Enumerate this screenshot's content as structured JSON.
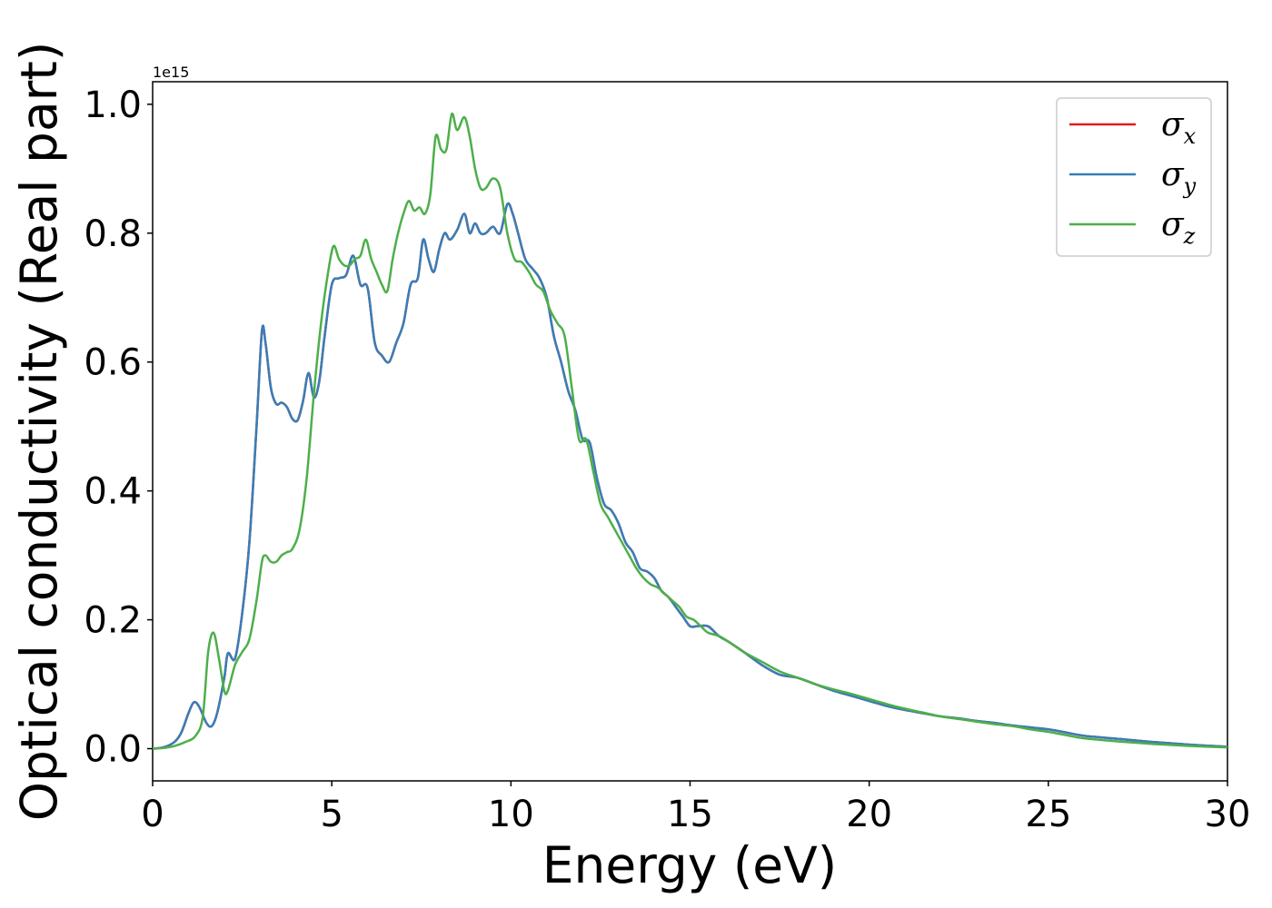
{
  "chart_data": {
    "type": "line",
    "xlabel": "Energy (eV)",
    "ylabel": "Optical conductivity (Real part)",
    "y_offset_label": "1e15",
    "xlim": [
      0,
      30
    ],
    "ylim": [
      -0.05,
      1.035
    ],
    "x_ticks": [
      0,
      5,
      10,
      15,
      20,
      25,
      30
    ],
    "x_tick_labels": [
      "0",
      "5",
      "10",
      "15",
      "20",
      "25",
      "30"
    ],
    "y_ticks": [
      0.0,
      0.2,
      0.4,
      0.6,
      0.8,
      1.0
    ],
    "y_tick_labels": [
      "0.0",
      "0.2",
      "0.4",
      "0.6",
      "0.8",
      "1.0"
    ],
    "grid": false,
    "legend_position": "top-right",
    "series": [
      {
        "name": "σx",
        "symbol": "σ",
        "subscript": "x",
        "color": "#e41a1c",
        "x": [
          0,
          0.3,
          0.6,
          0.8,
          1.0,
          1.15,
          1.3,
          1.5,
          1.65,
          1.8,
          2.0,
          2.1,
          2.3,
          2.5,
          2.7,
          2.9,
          3.05,
          3.15,
          3.3,
          3.45,
          3.6,
          3.75,
          3.9,
          4.05,
          4.2,
          4.35,
          4.5,
          4.65,
          4.8,
          5.0,
          5.2,
          5.4,
          5.6,
          5.8,
          6.0,
          6.2,
          6.4,
          6.6,
          6.8,
          7.0,
          7.2,
          7.4,
          7.55,
          7.7,
          7.85,
          8.0,
          8.15,
          8.3,
          8.5,
          8.7,
          8.85,
          9.0,
          9.15,
          9.3,
          9.5,
          9.7,
          9.9,
          10.05,
          10.2,
          10.4,
          10.6,
          10.8,
          11.0,
          11.2,
          11.4,
          11.6,
          11.8,
          12.0,
          12.2,
          12.4,
          12.6,
          12.8,
          13.0,
          13.2,
          13.4,
          13.6,
          13.8,
          14.0,
          14.2,
          14.4,
          14.6,
          14.8,
          15.0,
          15.2,
          15.5,
          15.8,
          16.1,
          16.5,
          17.0,
          17.5,
          18.0,
          18.5,
          19.0,
          19.5,
          20.0,
          20.5,
          21.0,
          21.5,
          22.0,
          22.5,
          23.0,
          23.5,
          24.0,
          24.5,
          25.0,
          25.5,
          26.0,
          27.0,
          28.0,
          29.0,
          30.0
        ],
        "y": [
          0,
          0.002,
          0.01,
          0.025,
          0.055,
          0.072,
          0.065,
          0.04,
          0.035,
          0.055,
          0.11,
          0.148,
          0.14,
          0.21,
          0.32,
          0.5,
          0.648,
          0.63,
          0.56,
          0.535,
          0.537,
          0.53,
          0.512,
          0.51,
          0.54,
          0.583,
          0.545,
          0.57,
          0.64,
          0.72,
          0.73,
          0.735,
          0.765,
          0.72,
          0.715,
          0.63,
          0.61,
          0.6,
          0.63,
          0.66,
          0.72,
          0.73,
          0.79,
          0.76,
          0.74,
          0.775,
          0.8,
          0.79,
          0.805,
          0.83,
          0.8,
          0.815,
          0.8,
          0.8,
          0.81,
          0.8,
          0.845,
          0.83,
          0.8,
          0.76,
          0.745,
          0.73,
          0.7,
          0.64,
          0.6,
          0.555,
          0.525,
          0.48,
          0.475,
          0.42,
          0.38,
          0.37,
          0.35,
          0.32,
          0.305,
          0.28,
          0.275,
          0.265,
          0.245,
          0.235,
          0.22,
          0.205,
          0.19,
          0.19,
          0.19,
          0.175,
          0.165,
          0.15,
          0.13,
          0.115,
          0.11,
          0.1,
          0.09,
          0.082,
          0.074,
          0.066,
          0.06,
          0.055,
          0.05,
          0.047,
          0.043,
          0.04,
          0.036,
          0.033,
          0.03,
          0.025,
          0.02,
          0.015,
          0.01,
          0.006,
          0.003
        ]
      },
      {
        "name": "σy",
        "symbol": "σ",
        "subscript": "y",
        "color": "#377eb8",
        "x": [
          0,
          0.3,
          0.6,
          0.8,
          1.0,
          1.15,
          1.3,
          1.5,
          1.65,
          1.8,
          2.0,
          2.1,
          2.3,
          2.5,
          2.7,
          2.9,
          3.05,
          3.15,
          3.3,
          3.45,
          3.6,
          3.75,
          3.9,
          4.05,
          4.2,
          4.35,
          4.5,
          4.65,
          4.8,
          5.0,
          5.2,
          5.4,
          5.6,
          5.8,
          6.0,
          6.2,
          6.4,
          6.6,
          6.8,
          7.0,
          7.2,
          7.4,
          7.55,
          7.7,
          7.85,
          8.0,
          8.15,
          8.3,
          8.5,
          8.7,
          8.85,
          9.0,
          9.15,
          9.3,
          9.5,
          9.7,
          9.9,
          10.05,
          10.2,
          10.4,
          10.6,
          10.8,
          11.0,
          11.2,
          11.4,
          11.6,
          11.8,
          12.0,
          12.2,
          12.4,
          12.6,
          12.8,
          13.0,
          13.2,
          13.4,
          13.6,
          13.8,
          14.0,
          14.2,
          14.4,
          14.6,
          14.8,
          15.0,
          15.2,
          15.5,
          15.8,
          16.1,
          16.5,
          17.0,
          17.5,
          18.0,
          18.5,
          19.0,
          19.5,
          20.0,
          20.5,
          21.0,
          21.5,
          22.0,
          22.5,
          23.0,
          23.5,
          24.0,
          24.5,
          25.0,
          25.5,
          26.0,
          27.0,
          28.0,
          29.0,
          30.0
        ],
        "y": [
          0,
          0.002,
          0.01,
          0.025,
          0.055,
          0.072,
          0.065,
          0.04,
          0.035,
          0.055,
          0.11,
          0.148,
          0.14,
          0.21,
          0.32,
          0.5,
          0.648,
          0.63,
          0.56,
          0.535,
          0.537,
          0.53,
          0.512,
          0.51,
          0.54,
          0.583,
          0.545,
          0.57,
          0.64,
          0.72,
          0.73,
          0.735,
          0.765,
          0.72,
          0.715,
          0.63,
          0.61,
          0.6,
          0.63,
          0.66,
          0.72,
          0.73,
          0.79,
          0.76,
          0.74,
          0.775,
          0.8,
          0.79,
          0.805,
          0.83,
          0.8,
          0.815,
          0.8,
          0.8,
          0.81,
          0.8,
          0.845,
          0.83,
          0.8,
          0.76,
          0.745,
          0.73,
          0.7,
          0.64,
          0.6,
          0.555,
          0.525,
          0.48,
          0.475,
          0.42,
          0.38,
          0.37,
          0.35,
          0.32,
          0.305,
          0.28,
          0.275,
          0.265,
          0.245,
          0.235,
          0.22,
          0.205,
          0.19,
          0.19,
          0.19,
          0.175,
          0.165,
          0.15,
          0.13,
          0.115,
          0.11,
          0.1,
          0.09,
          0.082,
          0.074,
          0.066,
          0.06,
          0.055,
          0.05,
          0.047,
          0.043,
          0.04,
          0.036,
          0.033,
          0.03,
          0.025,
          0.02,
          0.015,
          0.01,
          0.006,
          0.003
        ]
      },
      {
        "name": "σz",
        "symbol": "σ",
        "subscript": "z",
        "color": "#4daf4a",
        "x": [
          0,
          0.3,
          0.6,
          0.9,
          1.2,
          1.4,
          1.55,
          1.7,
          1.85,
          2.0,
          2.1,
          2.3,
          2.5,
          2.7,
          2.9,
          3.05,
          3.15,
          3.3,
          3.45,
          3.6,
          3.75,
          3.9,
          4.1,
          4.3,
          4.5,
          4.7,
          4.9,
          5.05,
          5.2,
          5.35,
          5.5,
          5.65,
          5.8,
          5.95,
          6.1,
          6.25,
          6.4,
          6.55,
          6.7,
          6.85,
          7.0,
          7.15,
          7.3,
          7.45,
          7.6,
          7.75,
          7.9,
          8.05,
          8.2,
          8.35,
          8.5,
          8.7,
          8.85,
          9.0,
          9.15,
          9.3,
          9.5,
          9.7,
          9.9,
          10.1,
          10.3,
          10.5,
          10.7,
          10.9,
          11.1,
          11.3,
          11.5,
          11.7,
          11.9,
          12.1,
          12.3,
          12.5,
          12.7,
          12.9,
          13.1,
          13.3,
          13.5,
          13.7,
          13.9,
          14.1,
          14.3,
          14.5,
          14.7,
          14.9,
          15.1,
          15.3,
          15.5,
          15.8,
          16.1,
          16.5,
          17.0,
          17.5,
          18.0,
          18.5,
          19.0,
          19.5,
          20.0,
          20.5,
          21.0,
          21.5,
          22.0,
          22.5,
          23.0,
          23.5,
          24.0,
          24.5,
          25.0,
          25.5,
          26.0,
          27.0,
          28.0,
          29.0,
          30.0
        ],
        "y": [
          0,
          0.001,
          0.004,
          0.01,
          0.02,
          0.05,
          0.15,
          0.18,
          0.14,
          0.09,
          0.09,
          0.13,
          0.15,
          0.17,
          0.23,
          0.29,
          0.3,
          0.29,
          0.29,
          0.3,
          0.305,
          0.31,
          0.34,
          0.42,
          0.55,
          0.66,
          0.74,
          0.78,
          0.76,
          0.75,
          0.75,
          0.76,
          0.765,
          0.79,
          0.76,
          0.74,
          0.72,
          0.71,
          0.76,
          0.8,
          0.83,
          0.85,
          0.835,
          0.84,
          0.83,
          0.86,
          0.95,
          0.93,
          0.93,
          0.985,
          0.96,
          0.98,
          0.95,
          0.9,
          0.87,
          0.87,
          0.885,
          0.87,
          0.8,
          0.76,
          0.755,
          0.74,
          0.72,
          0.71,
          0.68,
          0.66,
          0.64,
          0.56,
          0.48,
          0.48,
          0.43,
          0.38,
          0.36,
          0.34,
          0.32,
          0.3,
          0.28,
          0.265,
          0.255,
          0.25,
          0.24,
          0.23,
          0.22,
          0.205,
          0.2,
          0.19,
          0.18,
          0.175,
          0.165,
          0.15,
          0.135,
          0.12,
          0.11,
          0.1,
          0.092,
          0.085,
          0.077,
          0.069,
          0.062,
          0.056,
          0.05,
          0.046,
          0.042,
          0.038,
          0.035,
          0.03,
          0.026,
          0.021,
          0.016,
          0.011,
          0.007,
          0.004,
          0.002
        ]
      }
    ]
  }
}
